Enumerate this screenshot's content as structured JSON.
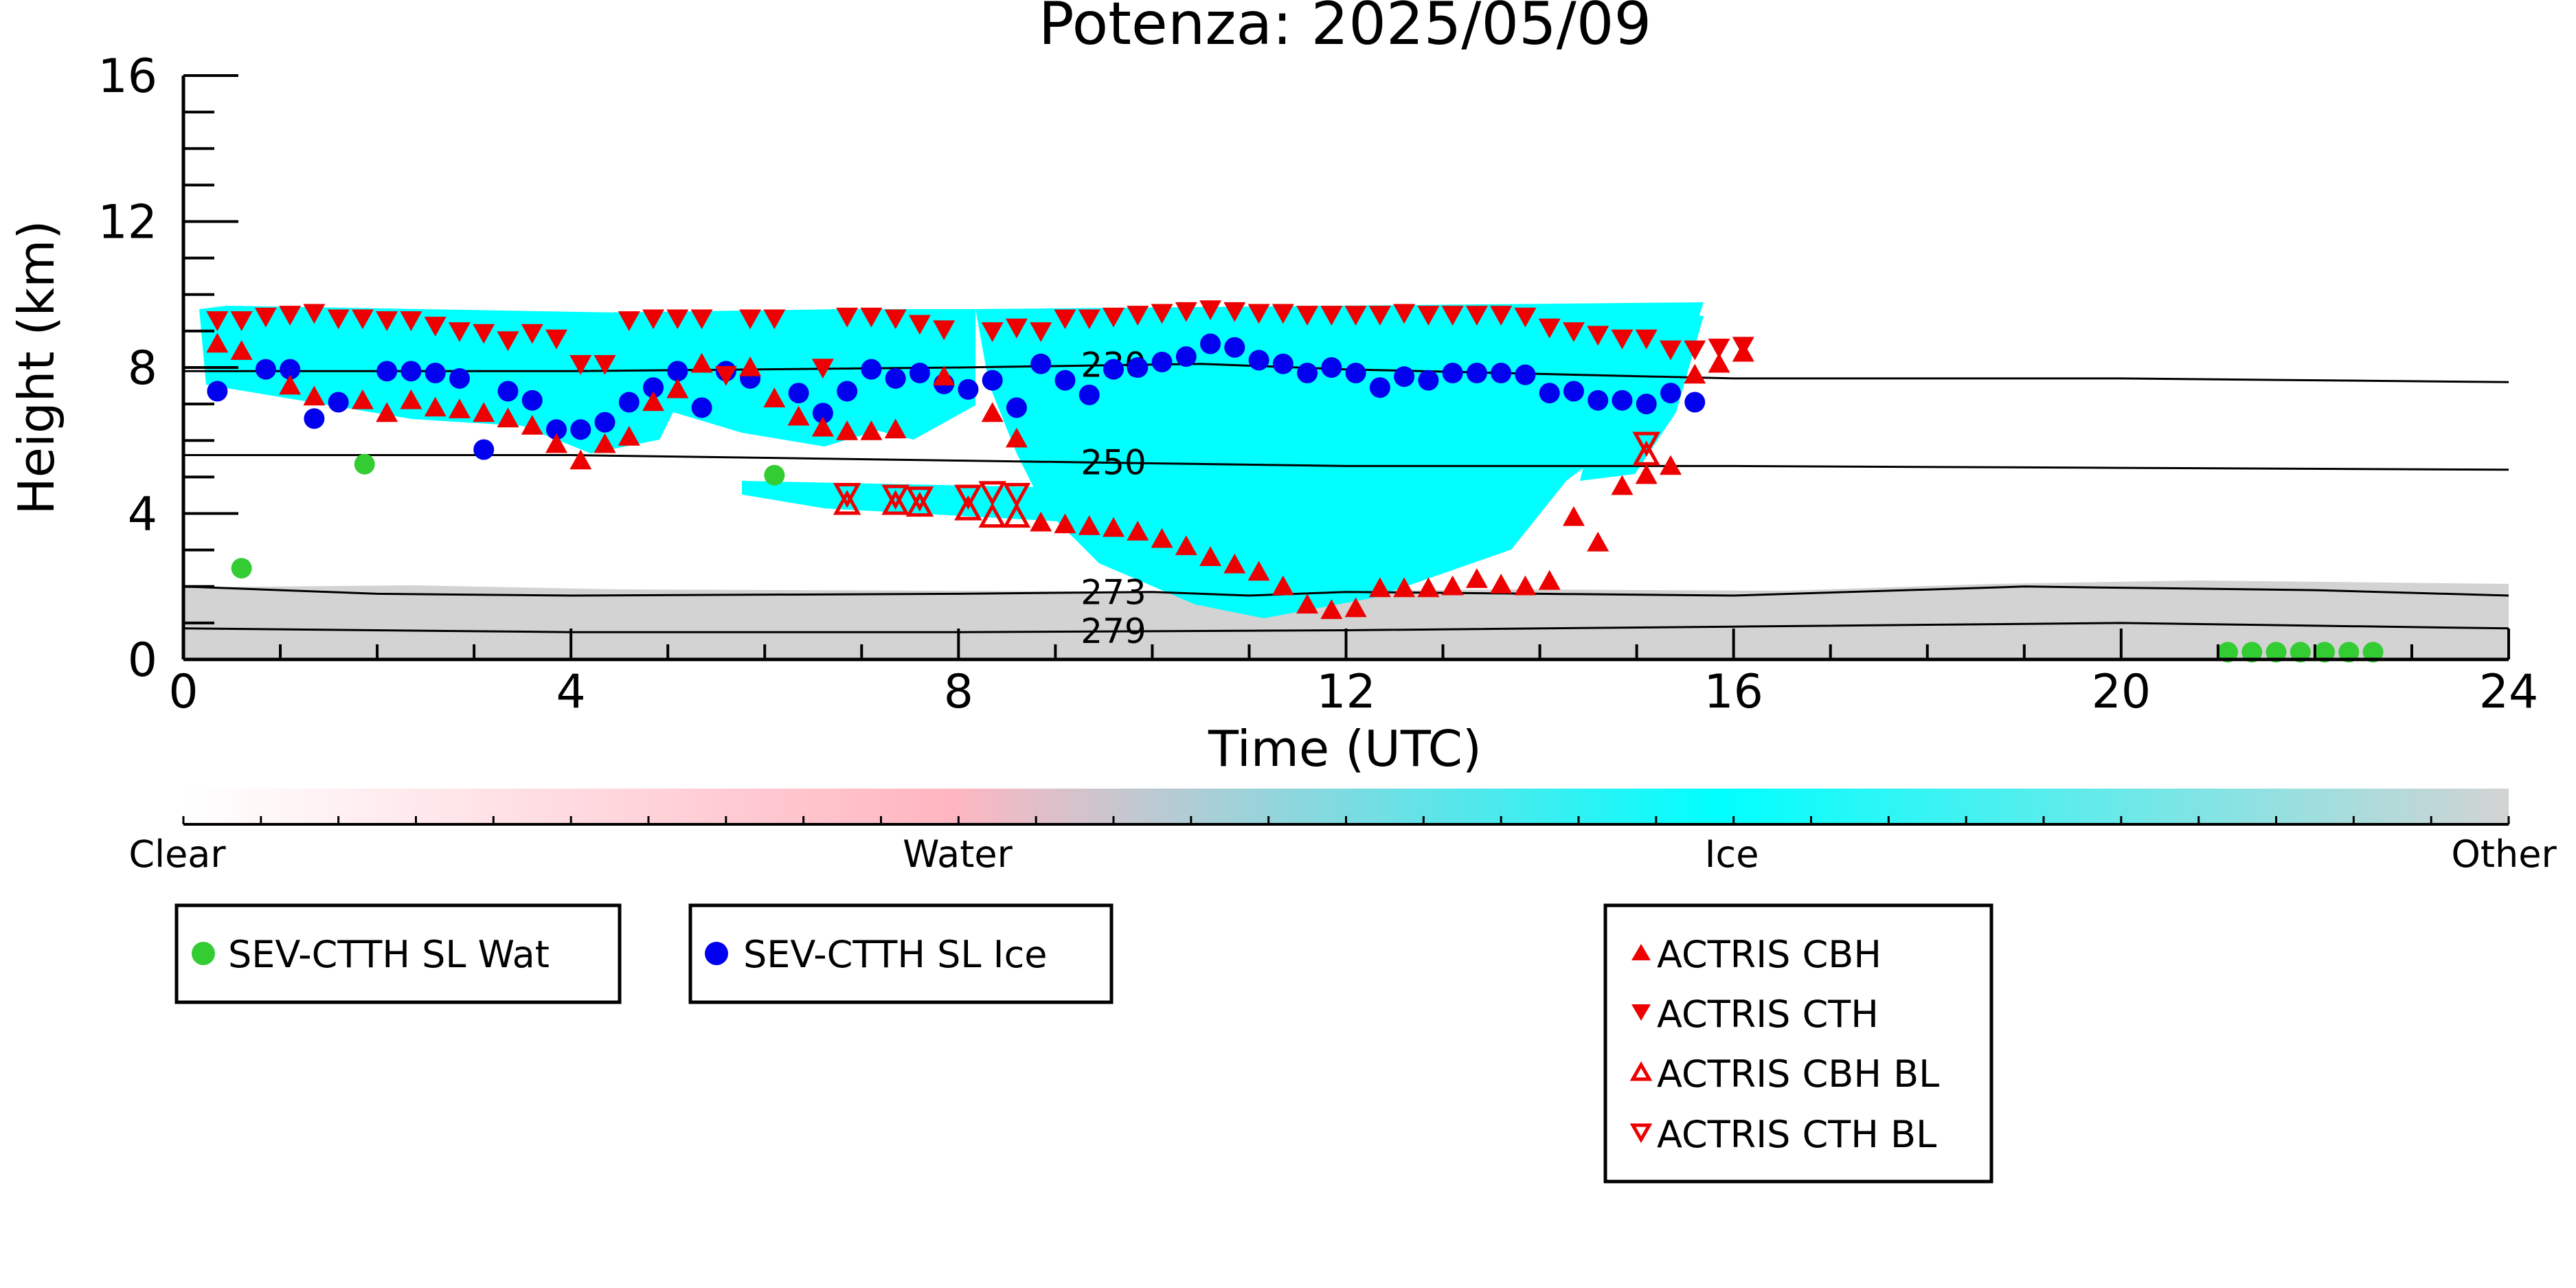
{
  "chart_data": {
    "type": "scatter",
    "title": "Potenza: 2025/05/09",
    "xlabel": "Time (UTC)",
    "ylabel": "Height (km)",
    "xlim": [
      0,
      24
    ],
    "ylim": [
      0,
      16
    ],
    "x_ticks": [
      "0",
      "4",
      "8",
      "12",
      "16",
      "20",
      "24"
    ],
    "y_ticks": [
      "0",
      "4",
      "8",
      "12",
      "16"
    ],
    "colorbar": {
      "labels": [
        "Clear",
        "Water",
        "Ice",
        "Other"
      ],
      "colors": [
        "#ffffff",
        "#ffb6c1",
        "#00ffff",
        "#d3d3d3"
      ]
    },
    "isotherms": [
      {
        "label": "230",
        "label_x": 9.6,
        "points": [
          [
            0,
            7.9
          ],
          [
            4,
            7.9
          ],
          [
            8,
            8.0
          ],
          [
            10.5,
            8.1
          ],
          [
            12,
            7.95
          ],
          [
            16,
            7.7
          ],
          [
            20,
            7.7
          ],
          [
            24,
            7.6
          ]
        ]
      },
      {
        "label": "250",
        "label_x": 9.6,
        "points": [
          [
            0,
            5.6
          ],
          [
            4,
            5.6
          ],
          [
            8,
            5.45
          ],
          [
            12,
            5.3
          ],
          [
            16,
            5.3
          ],
          [
            20,
            5.25
          ],
          [
            24,
            5.2
          ]
        ]
      },
      {
        "label": "273",
        "label_x": 9.6,
        "points": [
          [
            0,
            2.0
          ],
          [
            2,
            1.8
          ],
          [
            4,
            1.75
          ],
          [
            8,
            1.8
          ],
          [
            10,
            1.85
          ],
          [
            11,
            1.75
          ],
          [
            12,
            1.85
          ],
          [
            14,
            1.8
          ],
          [
            16,
            1.75
          ],
          [
            19,
            2.0
          ],
          [
            22,
            1.9
          ],
          [
            24,
            1.75
          ]
        ]
      },
      {
        "label": "279",
        "label_x": 9.6,
        "points": [
          [
            0,
            0.85
          ],
          [
            4,
            0.75
          ],
          [
            8,
            0.75
          ],
          [
            12,
            0.8
          ],
          [
            16,
            0.9
          ],
          [
            20,
            1.0
          ],
          [
            24,
            0.85
          ]
        ]
      }
    ],
    "series": [
      {
        "name": "SEV-CTTH SL Wat",
        "marker": "circle",
        "color": "#33cc33",
        "points": [
          [
            0.6,
            2.5
          ],
          [
            1.87,
            5.35
          ],
          [
            6.1,
            5.05
          ],
          [
            21.1,
            0.2
          ],
          [
            21.35,
            0.2
          ],
          [
            21.6,
            0.2
          ],
          [
            21.85,
            0.2
          ],
          [
            22.1,
            0.2
          ],
          [
            22.35,
            0.2
          ],
          [
            22.6,
            0.2
          ]
        ]
      },
      {
        "name": "SEV-CTTH SL Ice",
        "marker": "circle",
        "color": "#0000ee",
        "points": [
          [
            0.35,
            7.35
          ],
          [
            0.85,
            7.95
          ],
          [
            1.1,
            7.95
          ],
          [
            1.35,
            6.6
          ],
          [
            1.6,
            7.05
          ],
          [
            2.1,
            7.9
          ],
          [
            2.35,
            7.9
          ],
          [
            2.6,
            7.85
          ],
          [
            2.85,
            7.7
          ],
          [
            3.1,
            5.75
          ],
          [
            3.35,
            7.35
          ],
          [
            3.6,
            7.1
          ],
          [
            3.85,
            6.3
          ],
          [
            4.1,
            6.3
          ],
          [
            4.35,
            6.5
          ],
          [
            4.6,
            7.05
          ],
          [
            4.85,
            7.45
          ],
          [
            5.1,
            7.9
          ],
          [
            5.35,
            6.9
          ],
          [
            5.6,
            7.9
          ],
          [
            5.85,
            7.7
          ],
          [
            6.35,
            7.3
          ],
          [
            6.6,
            6.75
          ],
          [
            6.85,
            7.35
          ],
          [
            7.1,
            7.95
          ],
          [
            7.35,
            7.7
          ],
          [
            7.6,
            7.85
          ],
          [
            7.85,
            7.55
          ],
          [
            8.1,
            7.4
          ],
          [
            8.35,
            7.65
          ],
          [
            8.6,
            6.9
          ],
          [
            8.85,
            8.1
          ],
          [
            9.1,
            7.65
          ],
          [
            9.35,
            7.25
          ],
          [
            9.6,
            7.95
          ],
          [
            9.85,
            8.0
          ],
          [
            10.1,
            8.15
          ],
          [
            10.35,
            8.3
          ],
          [
            10.6,
            8.65
          ],
          [
            10.85,
            8.55
          ],
          [
            11.1,
            8.2
          ],
          [
            11.35,
            8.1
          ],
          [
            11.6,
            7.85
          ],
          [
            11.85,
            8.0
          ],
          [
            12.1,
            7.85
          ],
          [
            12.35,
            7.45
          ],
          [
            12.6,
            7.75
          ],
          [
            12.85,
            7.65
          ],
          [
            13.1,
            7.85
          ],
          [
            13.35,
            7.85
          ],
          [
            13.6,
            7.85
          ],
          [
            13.85,
            7.8
          ],
          [
            14.1,
            7.3
          ],
          [
            14.35,
            7.35
          ],
          [
            14.6,
            7.1
          ],
          [
            14.85,
            7.1
          ],
          [
            15.1,
            7.0
          ],
          [
            15.35,
            7.3
          ],
          [
            15.6,
            7.05
          ]
        ]
      },
      {
        "name": "ACTRIS CBH",
        "marker": "triangle-up",
        "color": "#ee0000",
        "filled": true,
        "points": [
          [
            0.35,
            8.65
          ],
          [
            0.6,
            8.45
          ],
          [
            1.1,
            7.5
          ],
          [
            1.35,
            7.2
          ],
          [
            1.85,
            7.1
          ],
          [
            2.1,
            6.75
          ],
          [
            2.35,
            7.1
          ],
          [
            2.6,
            6.9
          ],
          [
            2.85,
            6.85
          ],
          [
            3.1,
            6.75
          ],
          [
            3.35,
            6.6
          ],
          [
            3.6,
            6.4
          ],
          [
            3.85,
            5.9
          ],
          [
            4.1,
            5.45
          ],
          [
            4.35,
            5.9
          ],
          [
            4.6,
            6.1
          ],
          [
            4.85,
            7.05
          ],
          [
            5.1,
            7.4
          ],
          [
            5.35,
            8.1
          ],
          [
            5.85,
            8.0
          ],
          [
            6.1,
            7.15
          ],
          [
            6.35,
            6.65
          ],
          [
            6.6,
            6.35
          ],
          [
            6.85,
            6.25
          ],
          [
            7.1,
            6.25
          ],
          [
            7.35,
            6.3
          ],
          [
            7.85,
            7.75
          ],
          [
            8.35,
            6.75
          ],
          [
            8.6,
            6.05
          ],
          [
            8.85,
            3.75
          ],
          [
            9.1,
            3.7
          ],
          [
            9.35,
            3.65
          ],
          [
            9.6,
            3.6
          ],
          [
            9.85,
            3.5
          ],
          [
            10.1,
            3.3
          ],
          [
            10.35,
            3.1
          ],
          [
            10.6,
            2.8
          ],
          [
            10.85,
            2.6
          ],
          [
            11.1,
            2.4
          ],
          [
            11.35,
            2.0
          ],
          [
            11.6,
            1.5
          ],
          [
            11.85,
            1.35
          ],
          [
            12.1,
            1.4
          ],
          [
            12.35,
            1.95
          ],
          [
            12.6,
            1.95
          ],
          [
            12.85,
            1.95
          ],
          [
            13.1,
            2.0
          ],
          [
            13.35,
            2.2
          ],
          [
            13.6,
            2.05
          ],
          [
            13.85,
            2.0
          ],
          [
            14.1,
            2.15
          ],
          [
            14.35,
            3.9
          ],
          [
            14.6,
            3.2
          ],
          [
            14.85,
            4.75
          ],
          [
            15.1,
            5.05
          ],
          [
            15.35,
            5.3
          ],
          [
            15.6,
            7.8
          ],
          [
            15.85,
            8.1
          ],
          [
            16.1,
            8.4
          ]
        ]
      },
      {
        "name": "ACTRIS CTH",
        "marker": "triangle-down",
        "color": "#ee0000",
        "filled": true,
        "points": [
          [
            0.35,
            9.3
          ],
          [
            0.6,
            9.3
          ],
          [
            0.85,
            9.4
          ],
          [
            1.1,
            9.45
          ],
          [
            1.35,
            9.5
          ],
          [
            1.6,
            9.35
          ],
          [
            1.85,
            9.35
          ],
          [
            2.1,
            9.3
          ],
          [
            2.35,
            9.3
          ],
          [
            2.6,
            9.15
          ],
          [
            2.85,
            9.0
          ],
          [
            3.1,
            8.95
          ],
          [
            3.35,
            8.75
          ],
          [
            3.6,
            8.95
          ],
          [
            3.85,
            8.8
          ],
          [
            4.1,
            8.1
          ],
          [
            4.35,
            8.1
          ],
          [
            4.6,
            9.3
          ],
          [
            4.85,
            9.35
          ],
          [
            5.1,
            9.35
          ],
          [
            5.35,
            9.35
          ],
          [
            5.6,
            7.8
          ],
          [
            5.85,
            9.35
          ],
          [
            6.1,
            9.35
          ],
          [
            6.6,
            8.0
          ],
          [
            6.85,
            9.4
          ],
          [
            7.1,
            9.4
          ],
          [
            7.35,
            9.35
          ],
          [
            7.6,
            9.2
          ],
          [
            7.85,
            9.05
          ],
          [
            8.35,
            9.0
          ],
          [
            8.6,
            9.1
          ],
          [
            8.85,
            9.0
          ],
          [
            9.1,
            9.35
          ],
          [
            9.35,
            9.35
          ],
          [
            9.6,
            9.4
          ],
          [
            9.85,
            9.45
          ],
          [
            10.1,
            9.5
          ],
          [
            10.35,
            9.55
          ],
          [
            10.6,
            9.6
          ],
          [
            10.85,
            9.55
          ],
          [
            11.1,
            9.5
          ],
          [
            11.35,
            9.5
          ],
          [
            11.6,
            9.45
          ],
          [
            11.85,
            9.45
          ],
          [
            12.1,
            9.45
          ],
          [
            12.35,
            9.45
          ],
          [
            12.6,
            9.5
          ],
          [
            12.85,
            9.45
          ],
          [
            13.1,
            9.45
          ],
          [
            13.35,
            9.45
          ],
          [
            13.6,
            9.45
          ],
          [
            13.85,
            9.4
          ],
          [
            14.1,
            9.1
          ],
          [
            14.35,
            9.0
          ],
          [
            14.6,
            8.9
          ],
          [
            14.85,
            8.8
          ],
          [
            15.1,
            8.8
          ],
          [
            15.35,
            8.5
          ],
          [
            15.6,
            8.5
          ],
          [
            15.85,
            8.55
          ],
          [
            16.1,
            8.6
          ]
        ]
      },
      {
        "name": "ACTRIS CBH BL",
        "marker": "triangle-up",
        "color": "#ee0000",
        "filled": false,
        "points": [
          [
            6.85,
            4.25
          ],
          [
            7.35,
            4.25
          ],
          [
            7.6,
            4.2
          ],
          [
            8.1,
            4.1
          ],
          [
            8.35,
            3.9
          ],
          [
            8.6,
            3.9
          ],
          [
            15.1,
            5.6
          ]
        ]
      },
      {
        "name": "ACTRIS CTH BL",
        "marker": "triangle-down",
        "color": "#ee0000",
        "filled": false,
        "points": [
          [
            6.85,
            4.55
          ],
          [
            7.35,
            4.5
          ],
          [
            7.6,
            4.45
          ],
          [
            8.1,
            4.5
          ],
          [
            8.35,
            4.6
          ],
          [
            8.6,
            4.55
          ],
          [
            15.1,
            5.95
          ]
        ]
      }
    ],
    "legend": {
      "box1": [
        "SEV-CTTH SL Wat"
      ],
      "box2": [
        "SEV-CTTH SL Ice"
      ],
      "box3": [
        "ACTRIS CBH",
        "ACTRIS CTH",
        "ACTRIS CBH BL",
        "ACTRIS CTH BL"
      ]
    }
  }
}
